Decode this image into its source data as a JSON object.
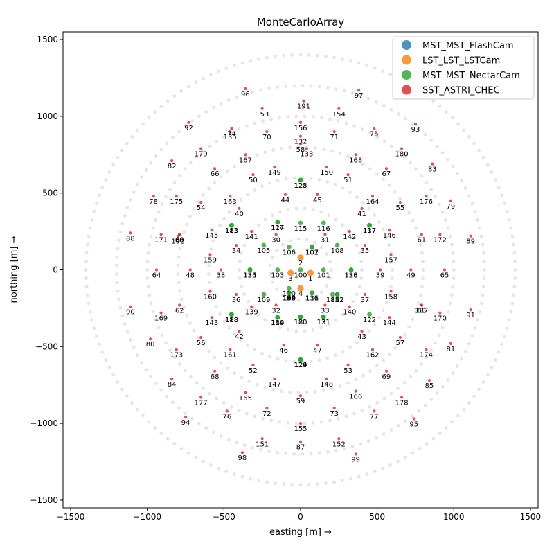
{
  "chart_data": {
    "type": "scatter",
    "title": "MonteCarloArray",
    "xlabel": "easting [m] →",
    "ylabel": "northing [m] →",
    "xlim": [
      -1550,
      1550
    ],
    "ylim": [
      -1550,
      1550
    ],
    "xticks": [
      -1500,
      -1000,
      -500,
      0,
      500,
      1000,
      1500
    ],
    "yticks": [
      -1500,
      -1000,
      -500,
      0,
      500,
      1000,
      1500
    ],
    "xtick_labels": [
      "−1500",
      "−1000",
      "−500",
      "0",
      "500",
      "1000",
      "1500"
    ],
    "ytick_labels": [
      "−1500",
      "−1000",
      "−500",
      "0",
      "500",
      "1000",
      "1500"
    ],
    "grid": false,
    "legend_position": "top-right",
    "background_rings": [
      200,
      400,
      600,
      800,
      1000,
      1200,
      1400
    ],
    "legend": [
      {
        "label": "MST_MST_FlashCam",
        "color": "#1f77b4"
      },
      {
        "label": "LST_LST_LSTCam",
        "color": "#ff7f0e"
      },
      {
        "label": "MST_MST_NectarCam",
        "color": "#2ca02c"
      },
      {
        "label": "SST_ASTRI_CHEC",
        "color": "#d62728"
      }
    ],
    "series": [
      {
        "name": "LST_LST_LSTCam",
        "color": "#ff7f0e",
        "points": [
          {
            "id": "1",
            "x": 65,
            "y": -20
          },
          {
            "id": "2",
            "x": 0,
            "y": 80
          },
          {
            "id": "3",
            "x": -65,
            "y": -20
          },
          {
            "id": "4",
            "x": 0,
            "y": -120
          }
        ]
      },
      {
        "name": "MST_MST_NectarCam",
        "color": "#2ca02c",
        "points": [
          {
            "id": "100",
            "x": 0,
            "y": 0
          },
          {
            "id": "101",
            "x": 150,
            "y": 0
          },
          {
            "id": "102",
            "x": 75,
            "y": 150
          },
          {
            "id": "103",
            "x": -150,
            "y": 0
          },
          {
            "id": "104",
            "x": -75,
            "y": -150
          },
          {
            "id": "105",
            "x": -240,
            "y": 160
          },
          {
            "id": "106",
            "x": -75,
            "y": 150
          },
          {
            "id": "107",
            "x": 75,
            "y": 150
          },
          {
            "id": "108",
            "x": 240,
            "y": 160
          },
          {
            "id": "109",
            "x": -240,
            "y": -160
          },
          {
            "id": "110",
            "x": -75,
            "y": -120
          },
          {
            "id": "111",
            "x": 75,
            "y": -150
          },
          {
            "id": "112",
            "x": 240,
            "y": -160
          },
          {
            "id": "113",
            "x": -450,
            "y": 290
          },
          {
            "id": "114",
            "x": -150,
            "y": 310
          },
          {
            "id": "115",
            "x": 0,
            "y": 305
          },
          {
            "id": "116",
            "x": 150,
            "y": 305
          },
          {
            "id": "117",
            "x": 450,
            "y": 290
          },
          {
            "id": "118",
            "x": -450,
            "y": -290
          },
          {
            "id": "119",
            "x": -150,
            "y": -310
          },
          {
            "id": "120",
            "x": 0,
            "y": -305
          },
          {
            "id": "121",
            "x": 150,
            "y": -305
          },
          {
            "id": "122",
            "x": 450,
            "y": -290
          },
          {
            "id": "123",
            "x": 0,
            "y": 585
          },
          {
            "id": "124",
            "x": 0,
            "y": -585
          },
          {
            "id": "125",
            "x": -330,
            "y": 0
          },
          {
            "id": "126",
            "x": 330,
            "y": 0
          },
          {
            "id": "127",
            "x": -150,
            "y": 310
          },
          {
            "id": "128",
            "x": 0,
            "y": 585
          },
          {
            "id": "129",
            "x": 0,
            "y": -585
          },
          {
            "id": "130",
            "x": -75,
            "y": -150
          },
          {
            "id": "131",
            "x": 150,
            "y": -305
          },
          {
            "id": "134",
            "x": -330,
            "y": 0
          },
          {
            "id": "136",
            "x": 75,
            "y": -150
          },
          {
            "id": "137",
            "x": 450,
            "y": 290
          },
          {
            "id": "138",
            "x": 330,
            "y": 0
          },
          {
            "id": "181",
            "x": 0,
            "y": -305
          },
          {
            "id": "182",
            "x": 240,
            "y": -160
          },
          {
            "id": "183",
            "x": -450,
            "y": 290
          },
          {
            "id": "184",
            "x": -150,
            "y": -310
          },
          {
            "id": "185",
            "x": 210,
            "y": -160
          },
          {
            "id": "186",
            "x": -75,
            "y": -150
          },
          {
            "id": "188",
            "x": -450,
            "y": -290
          },
          {
            "id": "189",
            "x": -75,
            "y": -150
          },
          {
            "id": "190",
            "x": -75,
            "y": -150
          }
        ]
      },
      {
        "name": "SST_ASTRI_CHEC",
        "color": "#d62728",
        "points": [
          {
            "id": "30",
            "x": -160,
            "y": 230
          },
          {
            "id": "31",
            "x": 160,
            "y": 230
          },
          {
            "id": "32",
            "x": -160,
            "y": -230
          },
          {
            "id": "33",
            "x": 160,
            "y": -230
          },
          {
            "id": "34",
            "x": -420,
            "y": 160
          },
          {
            "id": "35",
            "x": 420,
            "y": 160
          },
          {
            "id": "36",
            "x": -420,
            "y": -160
          },
          {
            "id": "37",
            "x": 420,
            "y": -160
          },
          {
            "id": "38",
            "x": -520,
            "y": 0
          },
          {
            "id": "39",
            "x": 520,
            "y": 0
          },
          {
            "id": "40",
            "x": -400,
            "y": 400
          },
          {
            "id": "41",
            "x": 400,
            "y": 400
          },
          {
            "id": "42",
            "x": -400,
            "y": -400
          },
          {
            "id": "43",
            "x": 400,
            "y": -400
          },
          {
            "id": "44",
            "x": -100,
            "y": 490
          },
          {
            "id": "45",
            "x": 110,
            "y": 490
          },
          {
            "id": "46",
            "x": -110,
            "y": -490
          },
          {
            "id": "47",
            "x": 110,
            "y": -490
          },
          {
            "id": "48",
            "x": -720,
            "y": 0
          },
          {
            "id": "49",
            "x": 720,
            "y": 0
          },
          {
            "id": "50",
            "x": -310,
            "y": 620
          },
          {
            "id": "51",
            "x": 310,
            "y": 620
          },
          {
            "id": "52",
            "x": -310,
            "y": -620
          },
          {
            "id": "53",
            "x": 310,
            "y": -620
          },
          {
            "id": "54",
            "x": -650,
            "y": 440
          },
          {
            "id": "55",
            "x": 650,
            "y": 440
          },
          {
            "id": "56",
            "x": -650,
            "y": -440
          },
          {
            "id": "57",
            "x": 650,
            "y": -440
          },
          {
            "id": "58",
            "x": 0,
            "y": 820
          },
          {
            "id": "59",
            "x": 0,
            "y": -820
          },
          {
            "id": "60",
            "x": -790,
            "y": 230
          },
          {
            "id": "61",
            "x": 790,
            "y": 230
          },
          {
            "id": "62",
            "x": -790,
            "y": -230
          },
          {
            "id": "63",
            "x": 790,
            "y": -230
          },
          {
            "id": "64",
            "x": -940,
            "y": 0
          },
          {
            "id": "65",
            "x": 940,
            "y": 0
          },
          {
            "id": "66",
            "x": -560,
            "y": 660
          },
          {
            "id": "67",
            "x": 560,
            "y": 660
          },
          {
            "id": "68",
            "x": -560,
            "y": -660
          },
          {
            "id": "69",
            "x": 560,
            "y": -660
          },
          {
            "id": "70",
            "x": -220,
            "y": 900
          },
          {
            "id": "71",
            "x": 220,
            "y": 900
          },
          {
            "id": "72",
            "x": -220,
            "y": -900
          },
          {
            "id": "73",
            "x": 220,
            "y": -900
          },
          {
            "id": "74",
            "x": -450,
            "y": 920
          },
          {
            "id": "75",
            "x": 480,
            "y": 920
          },
          {
            "id": "76",
            "x": -480,
            "y": -920
          },
          {
            "id": "77",
            "x": 480,
            "y": -920
          },
          {
            "id": "78",
            "x": -960,
            "y": 480
          },
          {
            "id": "79",
            "x": 980,
            "y": 450
          },
          {
            "id": "80",
            "x": -980,
            "y": -450
          },
          {
            "id": "81",
            "x": 980,
            "y": -480
          },
          {
            "id": "82",
            "x": -840,
            "y": 710
          },
          {
            "id": "83",
            "x": 860,
            "y": 690
          },
          {
            "id": "84",
            "x": -840,
            "y": -710
          },
          {
            "id": "85",
            "x": 840,
            "y": -720
          },
          {
            "id": "86",
            "x": -790,
            "y": 230
          },
          {
            "id": "87",
            "x": 0,
            "y": -1120
          },
          {
            "id": "88",
            "x": -1110,
            "y": 240
          },
          {
            "id": "89",
            "x": 1110,
            "y": 220
          },
          {
            "id": "90",
            "x": -1110,
            "y": -240
          },
          {
            "id": "91",
            "x": 1110,
            "y": -260
          },
          {
            "id": "92",
            "x": -730,
            "y": 960
          },
          {
            "id": "93",
            "x": 750,
            "y": 950
          },
          {
            "id": "94",
            "x": -750,
            "y": -960
          },
          {
            "id": "95",
            "x": 740,
            "y": -970
          },
          {
            "id": "96",
            "x": -360,
            "y": 1180
          },
          {
            "id": "97",
            "x": 380,
            "y": 1170
          },
          {
            "id": "98",
            "x": -380,
            "y": -1190
          },
          {
            "id": "99",
            "x": 360,
            "y": -1200
          },
          {
            "id": "132",
            "x": 0,
            "y": 870
          },
          {
            "id": "133",
            "x": 40,
            "y": 790
          },
          {
            "id": "135",
            "x": -460,
            "y": 900
          },
          {
            "id": "139",
            "x": -320,
            "y": -240
          },
          {
            "id": "140",
            "x": 320,
            "y": -240
          },
          {
            "id": "141",
            "x": -320,
            "y": 250
          },
          {
            "id": "142",
            "x": 320,
            "y": 250
          },
          {
            "id": "143",
            "x": -580,
            "y": -310
          },
          {
            "id": "144",
            "x": 580,
            "y": -310
          },
          {
            "id": "145",
            "x": -580,
            "y": 260
          },
          {
            "id": "146",
            "x": 580,
            "y": 260
          },
          {
            "id": "147",
            "x": -170,
            "y": -710
          },
          {
            "id": "148",
            "x": 170,
            "y": -710
          },
          {
            "id": "149",
            "x": -170,
            "y": 670
          },
          {
            "id": "150",
            "x": 170,
            "y": 670
          },
          {
            "id": "151",
            "x": -250,
            "y": -1100
          },
          {
            "id": "152",
            "x": 250,
            "y": -1100
          },
          {
            "id": "153",
            "x": -250,
            "y": 1050
          },
          {
            "id": "154",
            "x": 250,
            "y": 1050
          },
          {
            "id": "155",
            "x": 0,
            "y": -1000
          },
          {
            "id": "156",
            "x": 0,
            "y": 960
          },
          {
            "id": "157",
            "x": 590,
            "y": 100
          },
          {
            "id": "158",
            "x": 590,
            "y": -140
          },
          {
            "id": "159",
            "x": -590,
            "y": 100
          },
          {
            "id": "160",
            "x": -590,
            "y": -140
          },
          {
            "id": "161",
            "x": -460,
            "y": -520
          },
          {
            "id": "162",
            "x": 470,
            "y": -520
          },
          {
            "id": "163",
            "x": -460,
            "y": 480
          },
          {
            "id": "164",
            "x": 470,
            "y": 480
          },
          {
            "id": "165",
            "x": -360,
            "y": -800
          },
          {
            "id": "166",
            "x": 360,
            "y": -790
          },
          {
            "id": "167",
            "x": -360,
            "y": 750
          },
          {
            "id": "168",
            "x": 360,
            "y": 750
          },
          {
            "id": "169",
            "x": -910,
            "y": -280
          },
          {
            "id": "170",
            "x": 910,
            "y": -280
          },
          {
            "id": "171",
            "x": -910,
            "y": 230
          },
          {
            "id": "172",
            "x": 910,
            "y": 230
          },
          {
            "id": "173",
            "x": -810,
            "y": -520
          },
          {
            "id": "174",
            "x": 820,
            "y": -520
          },
          {
            "id": "175",
            "x": -810,
            "y": 480
          },
          {
            "id": "176",
            "x": 820,
            "y": 480
          },
          {
            "id": "177",
            "x": -650,
            "y": -830
          },
          {
            "id": "178",
            "x": 660,
            "y": -830
          },
          {
            "id": "179",
            "x": -650,
            "y": 790
          },
          {
            "id": "180",
            "x": 660,
            "y": 790
          },
          {
            "id": "187",
            "x": 790,
            "y": -230
          },
          {
            "id": "191",
            "x": 20,
            "y": 1100
          },
          {
            "id": "192",
            "x": -800,
            "y": 220
          }
        ]
      }
    ]
  }
}
